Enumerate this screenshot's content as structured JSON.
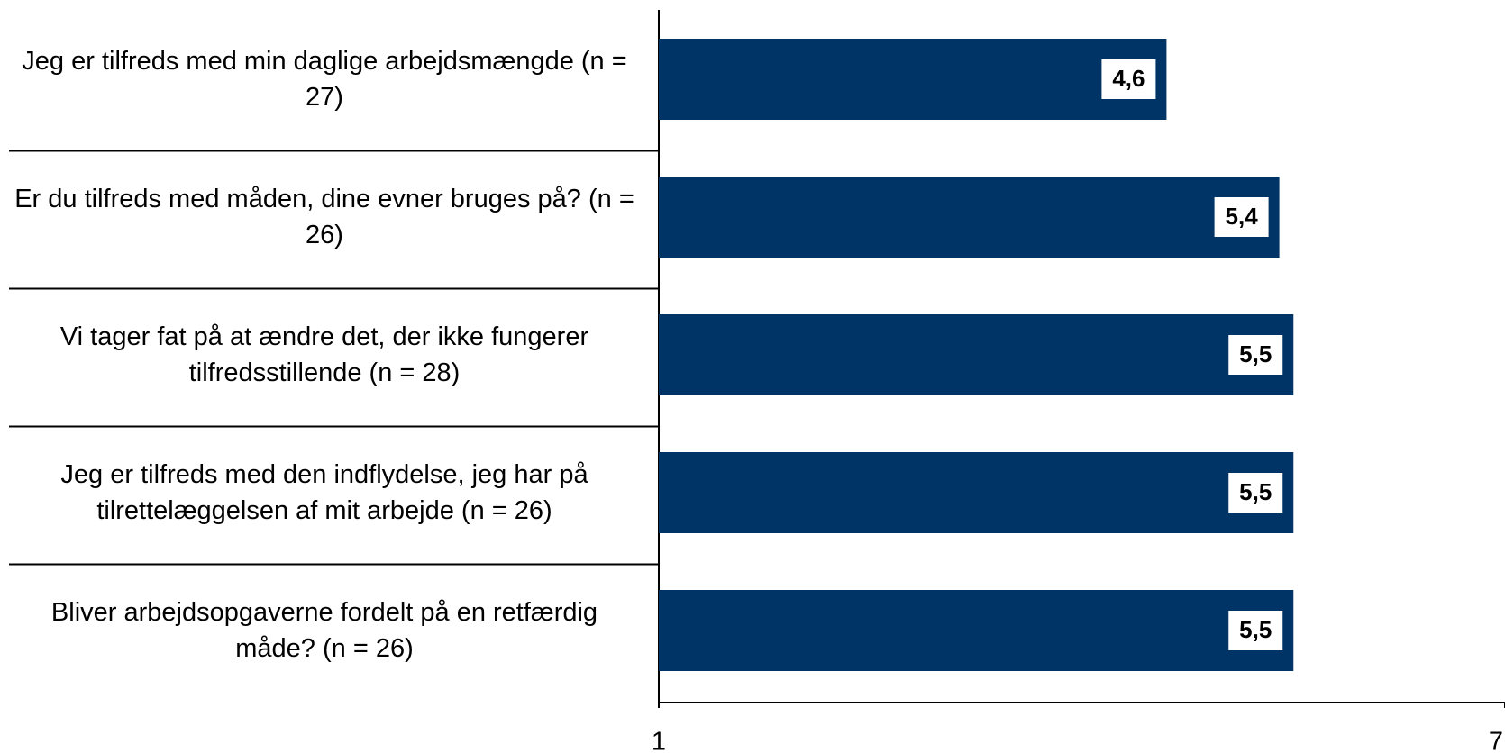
{
  "chart_data": {
    "type": "hbar",
    "categories": [
      "Jeg er tilfreds med min daglige arbejdsmængde (n = 27)",
      "Er du tilfreds med måden, dine evner bruges på? (n = 26)",
      "Vi tager fat på at ændre det, der ikke fungerer tilfredsstillende  (n = 28)",
      "Jeg er tilfreds med den indflydelse,  jeg har på tilrettelæggelsen af mit arbejde (n = 26)",
      "Bliver arbejdsopgaverne fordelt på en retfærdig måde? (n = 26)"
    ],
    "values": [
      4.6,
      5.4,
      5.5,
      5.5,
      5.5
    ],
    "value_labels": [
      "4,6",
      "5,4",
      "5,5",
      "5,5",
      "5,5"
    ],
    "color": "#003366",
    "xlim": [
      1,
      7
    ],
    "xticks": [
      1,
      7
    ]
  }
}
